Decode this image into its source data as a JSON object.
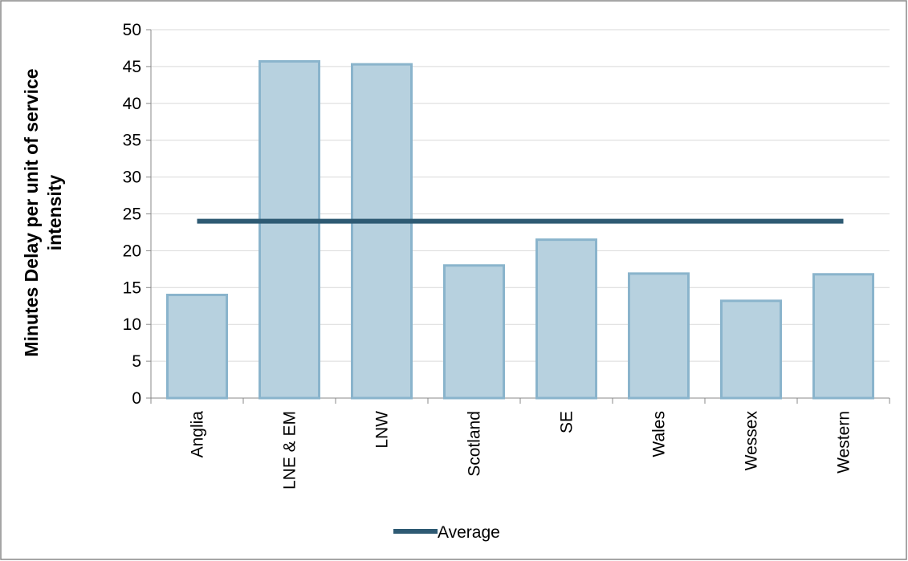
{
  "chart_data": {
    "type": "bar",
    "ylabel": "Minutes Delay per unit of service intensity",
    "categories": [
      "Anglia",
      "LNE & EM",
      "LNW",
      "Scotland",
      "SE",
      "Wales",
      "Wessex",
      "Western"
    ],
    "series": [
      {
        "type": "bar",
        "color": "#b7d1df",
        "values": [
          14,
          45.7,
          45.3,
          18,
          21.5,
          16.9,
          13.2,
          16.8
        ]
      },
      {
        "type": "line",
        "name": "Average",
        "color": "#2e5a73",
        "values": [
          24,
          24,
          24,
          24,
          24,
          24,
          24,
          24
        ]
      }
    ],
    "ylim": [
      0,
      50
    ],
    "yticks": [
      0,
      5,
      10,
      15,
      20,
      25,
      30,
      35,
      40,
      45,
      50
    ],
    "grid": true,
    "legend": "bottom"
  }
}
